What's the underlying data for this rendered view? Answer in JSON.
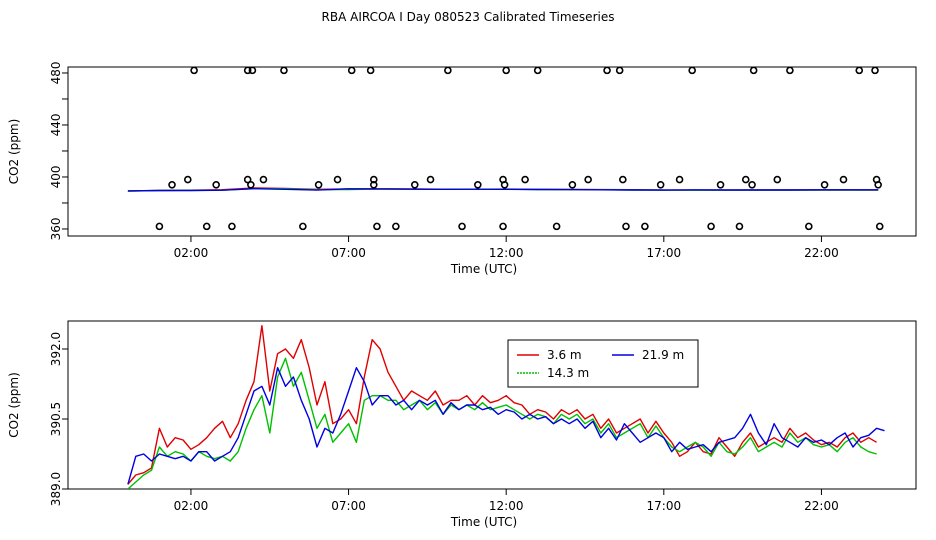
{
  "page": {
    "title": "RBA AIRCOA I  Day 080523  Calibrated Timeseries"
  },
  "colors": {
    "red": "#e00000",
    "green": "#00c000",
    "blue": "#0000e0",
    "axis": "#000000"
  },
  "chart_data": [
    {
      "type": "line",
      "ylabel": "CO2 (ppm)",
      "xlabel": "Time (UTC)",
      "xlim": [
        -1.9,
        25.0
      ],
      "ylim": [
        354.6,
        484.6
      ],
      "x_ticks": [
        2,
        7,
        12,
        17,
        22
      ],
      "x_tick_labels": [
        "02:00",
        "07:00",
        "12:00",
        "17:00",
        "22:00"
      ],
      "y_ticks": [
        360,
        380,
        400,
        420,
        440,
        460,
        480
      ],
      "y_tick_labels": [
        "360",
        "",
        "400",
        "",
        "440",
        "",
        "480"
      ],
      "series": [
        {
          "name": "3.6 m",
          "color": "#e00000",
          "x": [
            0,
            1,
            2,
            3,
            4,
            5,
            6,
            7,
            8,
            9,
            10,
            11,
            12,
            13,
            14,
            15,
            16,
            17,
            18,
            19,
            20,
            21,
            22,
            23,
            23.8
          ],
          "values": [
            389.2,
            389.6,
            389.8,
            390.2,
            391.5,
            391.2,
            390.5,
            390.8,
            391.0,
            390.8,
            390.6,
            390.5,
            390.7,
            390.5,
            390.4,
            390.3,
            390.2,
            389.9,
            389.8,
            389.9,
            390.0,
            390.0,
            390.0,
            390.0,
            390.0
          ]
        },
        {
          "name": "14.3 m",
          "color": "#00c000",
          "x": [
            0,
            1,
            2,
            3,
            4,
            5,
            6,
            7,
            8,
            9,
            10,
            11,
            12,
            13,
            14,
            15,
            16,
            17,
            18,
            19,
            20,
            21,
            22,
            23,
            23.8
          ],
          "values": [
            389.2,
            389.5,
            389.7,
            389.8,
            391.0,
            391.0,
            390.2,
            390.3,
            390.8,
            390.7,
            390.5,
            390.5,
            390.6,
            390.4,
            390.3,
            390.2,
            390.0,
            389.9,
            389.8,
            389.9,
            390.0,
            390.0,
            390.0,
            389.9,
            389.9
          ]
        },
        {
          "name": "21.9 m",
          "color": "#0000e0",
          "x": [
            0,
            1,
            2,
            3,
            4,
            5,
            6,
            7,
            8,
            9,
            10,
            11,
            12,
            13,
            14,
            15,
            16,
            17,
            18,
            19,
            20,
            21,
            22,
            23,
            23.8
          ],
          "values": [
            389.3,
            389.6,
            389.6,
            389.8,
            391.0,
            390.5,
            389.9,
            390.9,
            390.7,
            390.6,
            390.5,
            390.6,
            390.5,
            390.4,
            390.3,
            390.1,
            390.0,
            389.9,
            390.1,
            390.0,
            390.0,
            390.0,
            390.1,
            390.1,
            390.1
          ]
        }
      ],
      "points": {
        "x": [
          1.0,
          1.4,
          1.9,
          2.1,
          2.5,
          2.8,
          3.3,
          3.8,
          3.8,
          3.9,
          3.95,
          4.3,
          4.95,
          5.55,
          6.05,
          6.65,
          7.1,
          7.7,
          7.8,
          7.8,
          7.9,
          8.5,
          9.1,
          9.6,
          10.15,
          10.6,
          11.1,
          11.9,
          11.9,
          11.95,
          12.0,
          12.6,
          13.0,
          13.6,
          14.1,
          14.6,
          15.2,
          15.6,
          15.7,
          15.8,
          16.4,
          16.9,
          17.5,
          17.9,
          18.5,
          18.8,
          19.4,
          19.6,
          19.8,
          19.85,
          20.6,
          21.0,
          21.6,
          22.1,
          22.7,
          23.2,
          23.7,
          23.75,
          23.8,
          23.85
        ],
        "y": [
          362,
          394,
          398,
          482,
          362,
          394,
          362,
          482,
          398,
          394,
          482,
          398,
          482,
          362,
          394,
          398,
          482,
          482,
          398,
          394,
          362,
          362,
          394,
          398,
          482,
          362,
          394,
          362,
          398,
          394,
          482,
          398,
          482,
          362,
          394,
          398,
          482,
          482,
          398,
          362,
          362,
          394,
          398,
          482,
          362,
          394,
          362,
          398,
          394,
          482,
          398,
          482,
          362,
          394,
          398,
          482,
          482,
          398,
          394,
          362
        ]
      }
    },
    {
      "type": "line",
      "ylabel": "CO2 (ppm)",
      "xlabel": "Time (UTC)",
      "xlim": [
        -1.9,
        25.0
      ],
      "ylim": [
        389.0,
        392.6
      ],
      "x_ticks": [
        2,
        7,
        12,
        17,
        22
      ],
      "x_tick_labels": [
        "02:00",
        "07:00",
        "12:00",
        "17:00",
        "22:00"
      ],
      "y_ticks": [
        389.0,
        390.5,
        392.0
      ],
      "y_tick_labels": [
        "389.0",
        "390.5",
        "392.0"
      ],
      "legend": {
        "position": "top-center",
        "entries": [
          "3.6 m",
          "21.9 m",
          "14.3 m"
        ]
      },
      "series": [
        {
          "name": "3.6 m",
          "color": "#e00000",
          "x": [
            0.0,
            0.25,
            0.5,
            0.75,
            1.0,
            1.25,
            1.5,
            1.75,
            2.0,
            2.25,
            2.5,
            2.75,
            3.0,
            3.25,
            3.5,
            3.75,
            4.0,
            4.25,
            4.5,
            4.75,
            5.0,
            5.25,
            5.5,
            5.75,
            6.0,
            6.25,
            6.5,
            6.75,
            7.0,
            7.25,
            7.5,
            7.75,
            8.0,
            8.25,
            8.5,
            8.75,
            9.0,
            9.25,
            9.5,
            9.75,
            10.0,
            10.25,
            10.5,
            10.75,
            11.0,
            11.25,
            11.5,
            11.75,
            12.0,
            12.25,
            12.5,
            12.75,
            13.0,
            13.25,
            13.5,
            13.75,
            14.0,
            14.25,
            14.5,
            14.75,
            15.0,
            15.25,
            15.5,
            15.75,
            16.0,
            16.25,
            16.5,
            16.75,
            17.0,
            17.25,
            17.5,
            17.75,
            18.0,
            18.25,
            18.5,
            18.75,
            19.0,
            19.25,
            19.5,
            19.75,
            20.0,
            20.25,
            20.5,
            20.75,
            21.0,
            21.25,
            21.5,
            21.75,
            22.0,
            22.25,
            22.5,
            22.75,
            23.0,
            23.25,
            23.5,
            23.75
          ],
          "values": [
            389.1,
            389.3,
            389.35,
            389.45,
            390.3,
            389.9,
            390.1,
            390.05,
            389.85,
            389.95,
            390.1,
            390.3,
            390.45,
            390.1,
            390.4,
            390.9,
            391.3,
            392.5,
            391.1,
            391.9,
            392.0,
            391.8,
            392.2,
            391.6,
            390.8,
            391.3,
            390.4,
            390.5,
            390.7,
            390.4,
            391.4,
            392.2,
            392.0,
            391.5,
            391.2,
            390.9,
            391.1,
            391.0,
            390.9,
            391.1,
            390.8,
            390.9,
            390.9,
            391.0,
            390.8,
            391.0,
            390.85,
            390.9,
            391.0,
            390.85,
            390.8,
            390.6,
            390.7,
            390.65,
            390.5,
            390.7,
            390.6,
            390.7,
            390.5,
            390.6,
            390.3,
            390.5,
            390.2,
            390.3,
            390.4,
            390.5,
            390.2,
            390.45,
            390.2,
            390.0,
            389.7,
            389.8,
            390.0,
            389.8,
            389.75,
            390.1,
            389.9,
            389.7,
            390.0,
            390.2,
            389.9,
            390.0,
            390.1,
            390.0,
            390.3,
            390.1,
            390.2,
            390.05,
            389.95,
            390.0,
            389.9,
            390.1,
            390.2,
            390.0,
            390.1,
            390.0
          ]
        },
        {
          "name": "14.3 m",
          "color": "#00c000",
          "x": [
            0.0,
            0.25,
            0.5,
            0.75,
            1.0,
            1.25,
            1.5,
            1.75,
            2.0,
            2.25,
            2.5,
            2.75,
            3.0,
            3.25,
            3.5,
            3.75,
            4.0,
            4.25,
            4.5,
            4.75,
            5.0,
            5.25,
            5.5,
            5.75,
            6.0,
            6.25,
            6.5,
            6.75,
            7.0,
            7.25,
            7.5,
            7.75,
            8.0,
            8.25,
            8.5,
            8.75,
            9.0,
            9.25,
            9.5,
            9.75,
            10.0,
            10.25,
            10.5,
            10.75,
            11.0,
            11.25,
            11.5,
            11.75,
            12.0,
            12.25,
            12.5,
            12.75,
            13.0,
            13.25,
            13.5,
            13.75,
            14.0,
            14.25,
            14.5,
            14.75,
            15.0,
            15.25,
            15.5,
            15.75,
            16.0,
            16.25,
            16.5,
            16.75,
            17.0,
            17.25,
            17.5,
            17.75,
            18.0,
            18.25,
            18.5,
            18.75,
            19.0,
            19.25,
            19.5,
            19.75,
            20.0,
            20.25,
            20.5,
            20.75,
            21.0,
            21.25,
            21.5,
            21.75,
            22.0,
            22.25,
            22.5,
            22.75,
            23.0,
            23.25,
            23.5,
            23.75
          ],
          "values": [
            389.0,
            389.15,
            389.3,
            389.4,
            389.9,
            389.7,
            389.8,
            389.75,
            389.6,
            389.8,
            389.7,
            389.65,
            389.7,
            389.6,
            389.8,
            390.3,
            390.7,
            391.0,
            390.2,
            391.4,
            391.8,
            391.2,
            391.5,
            390.9,
            390.3,
            390.6,
            390.0,
            390.2,
            390.4,
            390.0,
            390.9,
            391.0,
            391.0,
            390.9,
            390.9,
            390.7,
            390.8,
            390.9,
            390.7,
            390.85,
            390.6,
            390.8,
            390.7,
            390.8,
            390.7,
            390.85,
            390.7,
            390.75,
            390.8,
            390.7,
            390.6,
            390.5,
            390.6,
            390.55,
            390.4,
            390.6,
            390.5,
            390.6,
            390.4,
            390.5,
            390.2,
            390.4,
            390.1,
            390.2,
            390.3,
            390.4,
            390.1,
            390.35,
            390.1,
            389.9,
            389.8,
            389.9,
            390.0,
            389.9,
            389.7,
            390.0,
            389.8,
            389.75,
            389.9,
            390.1,
            389.8,
            389.9,
            390.0,
            389.9,
            390.2,
            390.0,
            390.1,
            389.95,
            389.9,
            389.95,
            389.8,
            390.0,
            390.1,
            389.9,
            389.8,
            389.75
          ]
        },
        {
          "name": "21.9 m",
          "color": "#0000e0",
          "x": [
            0.0,
            0.25,
            0.5,
            0.75,
            1.0,
            1.25,
            1.5,
            1.75,
            2.0,
            2.25,
            2.5,
            2.75,
            3.0,
            3.25,
            3.5,
            3.75,
            4.0,
            4.25,
            4.5,
            4.75,
            5.0,
            5.25,
            5.5,
            5.75,
            6.0,
            6.25,
            6.5,
            6.75,
            7.0,
            7.25,
            7.5,
            7.75,
            8.0,
            8.25,
            8.5,
            8.75,
            9.0,
            9.25,
            9.5,
            9.75,
            10.0,
            10.25,
            10.5,
            10.75,
            11.0,
            11.25,
            11.5,
            11.75,
            12.0,
            12.25,
            12.5,
            12.75,
            13.0,
            13.25,
            13.5,
            13.75,
            14.0,
            14.25,
            14.5,
            14.75,
            15.0,
            15.25,
            15.5,
            15.75,
            16.0,
            16.25,
            16.5,
            16.75,
            17.0,
            17.25,
            17.5,
            17.75,
            18.0,
            18.25,
            18.5,
            18.75,
            19.0,
            19.25,
            19.5,
            19.75,
            20.0,
            20.25,
            20.5,
            20.75,
            21.0,
            21.25,
            21.5,
            21.75,
            22.0,
            22.25,
            22.5,
            22.75,
            23.0,
            23.25,
            23.5,
            23.75,
            24.0
          ],
          "values": [
            389.1,
            389.7,
            389.75,
            389.6,
            389.75,
            389.7,
            389.65,
            389.7,
            389.6,
            389.8,
            389.8,
            389.6,
            389.7,
            389.8,
            390.1,
            390.6,
            391.1,
            391.2,
            390.8,
            391.6,
            391.2,
            391.4,
            390.9,
            390.5,
            389.9,
            390.3,
            390.2,
            390.6,
            391.1,
            391.6,
            391.3,
            390.8,
            391.0,
            391.0,
            390.8,
            390.9,
            390.7,
            390.9,
            390.8,
            390.9,
            390.6,
            390.85,
            390.7,
            390.8,
            390.8,
            390.7,
            390.75,
            390.6,
            390.7,
            390.65,
            390.5,
            390.6,
            390.5,
            390.55,
            390.4,
            390.5,
            390.4,
            390.5,
            390.3,
            390.45,
            390.1,
            390.3,
            390.05,
            390.4,
            390.2,
            390.0,
            390.1,
            390.2,
            390.1,
            389.8,
            390.0,
            389.85,
            389.9,
            389.95,
            389.8,
            390.0,
            390.05,
            390.1,
            390.3,
            390.6,
            390.2,
            389.95,
            390.4,
            390.1,
            390.0,
            389.9,
            390.1,
            390.0,
            390.05,
            389.95,
            390.1,
            390.2,
            389.9,
            390.1,
            390.15,
            390.3,
            390.25
          ]
        }
      ]
    }
  ]
}
